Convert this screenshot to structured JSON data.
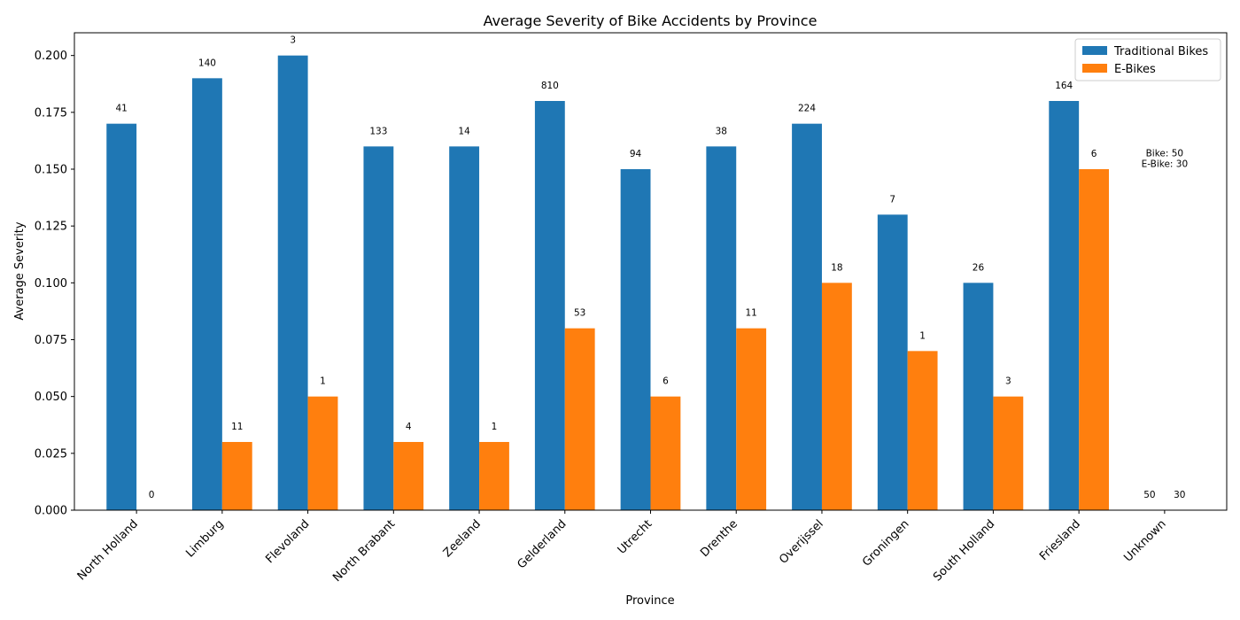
{
  "chart_data": {
    "type": "bar",
    "title": "Average Severity of Bike Accidents by Province",
    "xlabel": "Province",
    "ylabel": "Average Severity",
    "ylim": [
      0,
      0.21
    ],
    "yticks": [
      "0.000",
      "0.025",
      "0.050",
      "0.075",
      "0.100",
      "0.125",
      "0.150",
      "0.175",
      "0.200"
    ],
    "grid": false,
    "legend_position": "top-right",
    "categories": [
      "North Holland",
      "Limburg",
      "Flevoland",
      "North Brabant",
      "Zeeland",
      "Gelderland",
      "Utrecht",
      "Drenthe",
      "Overijssel",
      "Groningen",
      "South Holland",
      "Friesland",
      "Unknown"
    ],
    "series": [
      {
        "name": "Traditional Bikes",
        "color": "#1f77b4",
        "values": [
          0.17,
          0.19,
          0.2,
          0.16,
          0.16,
          0.18,
          0.15,
          0.16,
          0.17,
          0.13,
          0.1,
          0.18,
          0
        ],
        "labels": [
          "41",
          "140",
          "3",
          "133",
          "14",
          "810",
          "94",
          "38",
          "224",
          "7",
          "26",
          "164",
          "50"
        ]
      },
      {
        "name": "E-Bikes",
        "color": "#ff7f0e",
        "values": [
          0,
          0.03,
          0.05,
          0.03,
          0.03,
          0.08,
          0.05,
          0.08,
          0.1,
          0.07,
          0.05,
          0.15,
          0
        ],
        "labels": [
          "0",
          "11",
          "1",
          "4",
          "1",
          "53",
          "6",
          "11",
          "18",
          "1",
          "3",
          "6",
          "30"
        ]
      }
    ],
    "annotation": {
      "lines": [
        "Bike: 50",
        "E-Bike: 30"
      ],
      "category": "Unknown",
      "y": 0.1525
    }
  }
}
